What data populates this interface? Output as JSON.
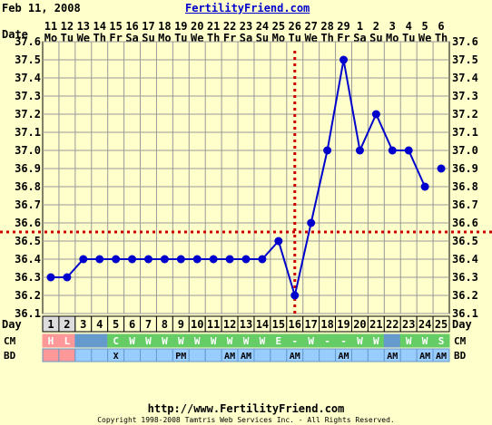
{
  "header": {
    "date": "Feb 11, 2008",
    "site": "FertilityFriend.com"
  },
  "footer": {
    "url": "http://www.FertilityFriend.com",
    "copyright": "Copyright 1998-2008 Tamtris Web Services Inc. - All Rights Reserved."
  },
  "colors": {
    "background": "#FFFFCC",
    "plot_background": "#FFFFCC",
    "grid": "#999999",
    "series": "#0000CC",
    "coverline": "#CC0000",
    "period_cell": "#FF9999",
    "cm_cell": "#66CC66",
    "cm_row": "#6699CC",
    "bd_row": "#99CCFF"
  },
  "chart_data": {
    "type": "line",
    "date_label": "Date",
    "day_label": "Day",
    "dates": [
      "11",
      "12",
      "13",
      "14",
      "15",
      "16",
      "17",
      "18",
      "19",
      "20",
      "21",
      "22",
      "23",
      "24",
      "25",
      "26",
      "27",
      "28",
      "29",
      "1",
      "2",
      "3",
      "4",
      "5",
      "6"
    ],
    "weekdays": [
      "Mo",
      "Tu",
      "We",
      "Th",
      "Fr",
      "Sa",
      "Su",
      "Mo",
      "Tu",
      "We",
      "Th",
      "Fr",
      "Sa",
      "Su",
      "Mo",
      "Tu",
      "We",
      "Th",
      "Fr",
      "Sa",
      "Su",
      "Mo",
      "Tu",
      "We",
      "Th"
    ],
    "days": [
      1,
      2,
      3,
      4,
      5,
      6,
      7,
      8,
      9,
      10,
      11,
      12,
      13,
      14,
      15,
      16,
      17,
      18,
      19,
      20,
      21,
      22,
      23,
      24,
      25
    ],
    "temps": [
      36.3,
      36.3,
      36.4,
      36.4,
      36.4,
      36.4,
      36.4,
      36.4,
      36.4,
      36.4,
      36.4,
      36.4,
      36.4,
      36.4,
      36.5,
      36.2,
      36.6,
      37.0,
      37.5,
      37.0,
      37.2,
      37.0,
      37.0,
      36.8,
      36.9
    ],
    "segments_break_after_day": 24,
    "yticks": [
      "37.6",
      "37.5",
      "37.4",
      "37.3",
      "37.2",
      "37.1",
      "37.0",
      "36.9",
      "36.8",
      "36.7",
      "36.6",
      "36.5",
      "36.4",
      "36.3",
      "36.2",
      "36.1"
    ],
    "ylim": [
      36.1,
      37.6
    ],
    "coverline": 36.55,
    "ovulation_day": 16,
    "period_days": [
      1,
      2
    ],
    "period_labels": [
      "H",
      "L",
      "",
      "",
      "",
      "",
      "",
      "",
      "",
      "",
      "",
      "",
      "",
      "",
      "",
      "",
      "",
      "",
      "",
      "",
      "",
      "",
      "",
      "",
      ""
    ],
    "cm_label": "CM",
    "cm": [
      "",
      "",
      "",
      "",
      "C",
      "W",
      "W",
      "W",
      "W",
      "W",
      "W",
      "W",
      "W",
      "W",
      "E",
      "-",
      "W",
      "-",
      "-",
      "W",
      "W",
      "",
      "W",
      "W",
      "S"
    ],
    "bd_label": "BD",
    "bd": [
      "",
      "",
      "",
      "",
      "X",
      "",
      "",
      "",
      "PM",
      "",
      "",
      "AM",
      "AM",
      "",
      "",
      "AM",
      "",
      "",
      "AM",
      "",
      "",
      "AM",
      "",
      "AM",
      "AM"
    ]
  }
}
